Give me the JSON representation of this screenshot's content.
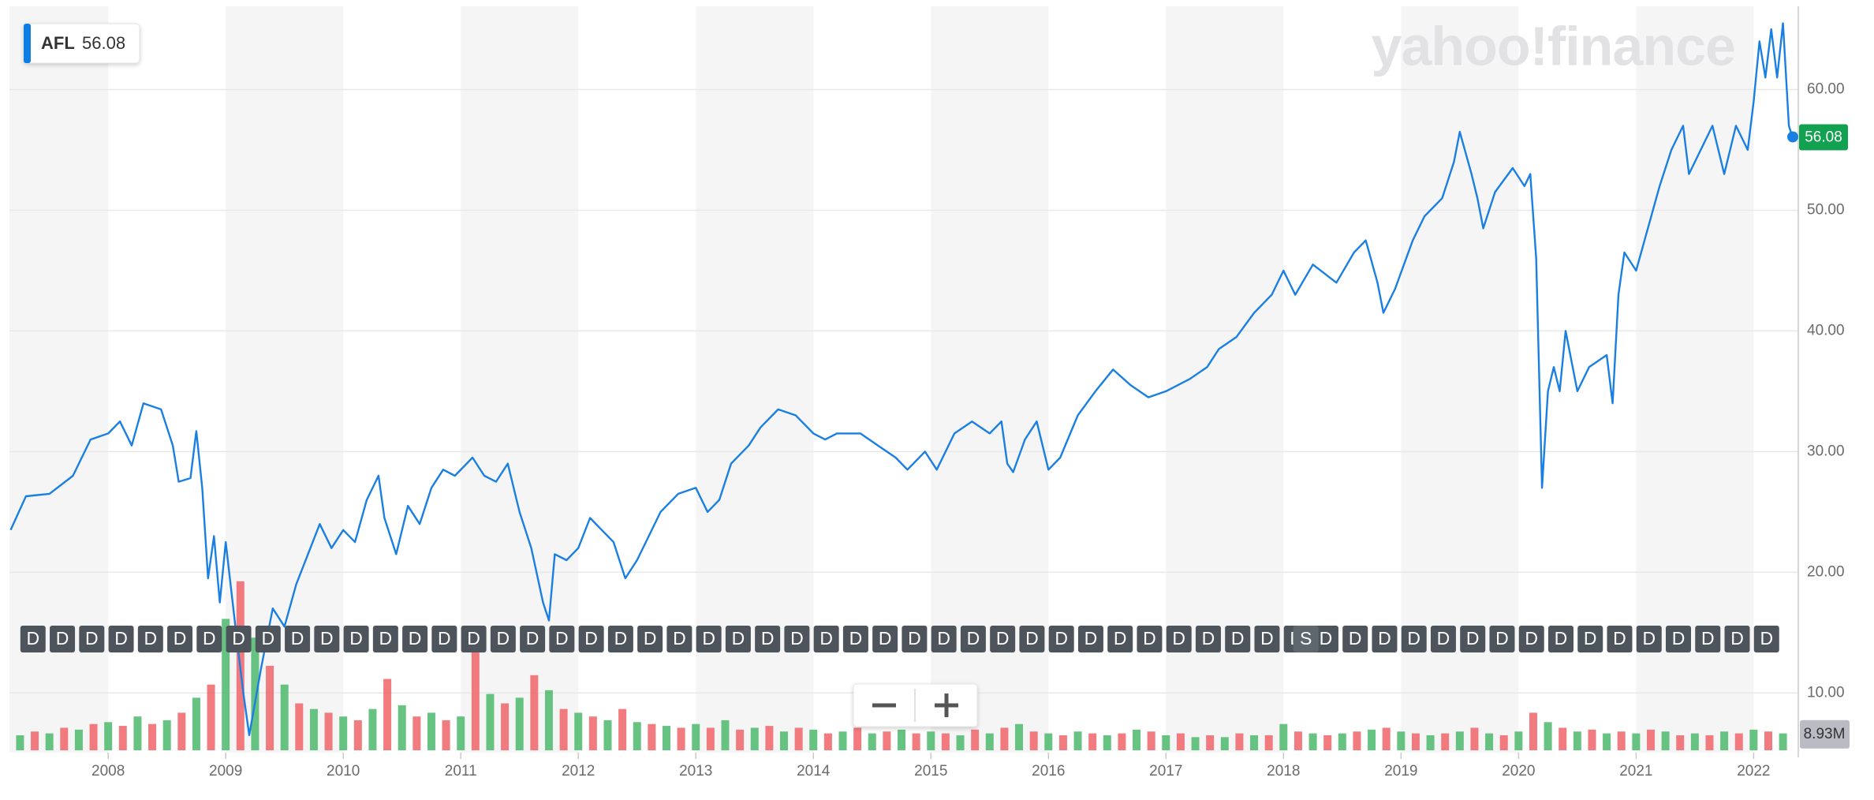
{
  "chart_data": {
    "type": "line",
    "symbol": "AFL",
    "watermark": "yahoo!finance",
    "last_price": 56.08,
    "x": [
      2007.17,
      2007.3,
      2007.5,
      2007.7,
      2007.85,
      2008.0,
      2008.1,
      2008.2,
      2008.3,
      2008.45,
      2008.55,
      2008.6,
      2008.7,
      2008.75,
      2008.8,
      2008.85,
      2008.9,
      2008.95,
      2009.0,
      2009.1,
      2009.15,
      2009.2,
      2009.3,
      2009.4,
      2009.5,
      2009.6,
      2009.7,
      2009.8,
      2009.9,
      2010.0,
      2010.1,
      2010.2,
      2010.3,
      2010.35,
      2010.45,
      2010.55,
      2010.65,
      2010.75,
      2010.85,
      2010.95,
      2011.1,
      2011.2,
      2011.3,
      2011.4,
      2011.5,
      2011.6,
      2011.7,
      2011.75,
      2011.8,
      2011.9,
      2012.0,
      2012.1,
      2012.2,
      2012.3,
      2012.4,
      2012.5,
      2012.6,
      2012.7,
      2012.85,
      2013.0,
      2013.1,
      2013.2,
      2013.3,
      2013.45,
      2013.55,
      2013.7,
      2013.85,
      2014.0,
      2014.1,
      2014.2,
      2014.4,
      2014.55,
      2014.7,
      2014.8,
      2014.95,
      2015.05,
      2015.2,
      2015.35,
      2015.5,
      2015.6,
      2015.65,
      2015.7,
      2015.8,
      2015.9,
      2016.0,
      2016.1,
      2016.25,
      2016.4,
      2016.55,
      2016.7,
      2016.85,
      2017.0,
      2017.2,
      2017.35,
      2017.45,
      2017.6,
      2017.75,
      2017.9,
      2018.0,
      2018.1,
      2018.25,
      2018.45,
      2018.6,
      2018.7,
      2018.8,
      2018.85,
      2018.95,
      2019.1,
      2019.2,
      2019.35,
      2019.45,
      2019.5,
      2019.6,
      2019.65,
      2019.7,
      2019.8,
      2019.95,
      2020.05,
      2020.1,
      2020.15,
      2020.2,
      2020.25,
      2020.3,
      2020.35,
      2020.4,
      2020.5,
      2020.6,
      2020.75,
      2020.8,
      2020.85,
      2020.9,
      2021.0,
      2021.1,
      2021.2,
      2021.3,
      2021.4,
      2021.45,
      2021.55,
      2021.65,
      2021.75,
      2021.85,
      2021.95,
      2022.0,
      2022.05,
      2022.1,
      2022.15,
      2022.2,
      2022.25,
      2022.3,
      2022.33
    ],
    "series": [
      {
        "color": "#1a7fe3",
        "values": [
          23.5,
          26.3,
          26.5,
          28,
          31,
          31.5,
          32.5,
          30.5,
          34,
          33.5,
          30.5,
          27.5,
          27.8,
          31.7,
          27,
          19.5,
          23,
          17.5,
          22.5,
          14,
          10,
          6.5,
          12,
          17,
          15.5,
          19,
          21.5,
          24,
          22,
          23.5,
          22.5,
          26,
          28,
          24.5,
          21.5,
          25.5,
          24,
          27,
          28.5,
          28,
          29.5,
          28,
          27.5,
          29,
          25,
          22,
          17.5,
          16,
          21.5,
          21,
          22,
          24.5,
          23.5,
          22.5,
          19.5,
          21,
          23,
          25,
          26.5,
          27,
          25,
          26,
          29,
          30.5,
          32,
          33.5,
          33,
          31.5,
          31,
          31.5,
          31.5,
          30.5,
          29.5,
          28.5,
          30,
          28.5,
          31.5,
          32.5,
          31.5,
          32.5,
          29,
          28.3,
          31,
          32.5,
          28.5,
          29.5,
          33,
          35,
          36.8,
          35.5,
          34.5,
          35,
          36,
          37,
          38.5,
          39.5,
          41.5,
          43,
          45,
          43,
          45.5,
          44,
          46.5,
          47.5,
          44,
          41.5,
          43.5,
          47.5,
          49.5,
          51,
          54,
          56.5,
          53,
          51,
          48.5,
          51.5,
          53.5,
          52,
          53,
          46,
          27,
          35,
          37,
          35,
          40,
          35,
          37,
          38,
          34,
          43,
          46.5,
          45,
          48.5,
          52,
          55,
          57,
          53,
          55,
          57,
          53,
          57,
          55,
          59,
          64,
          61,
          65,
          61,
          65.5,
          57,
          56.08
        ]
      }
    ],
    "xlim": [
      2007.16,
      2022.38
    ],
    "xticks": [
      2008,
      2009,
      2010,
      2011,
      2012,
      2013,
      2014,
      2015,
      2016,
      2017,
      2018,
      2019,
      2020,
      2021,
      2022
    ],
    "ylim": [
      5.05,
      66.9
    ],
    "yticks": [
      {
        "value": 10,
        "label": "10.00"
      },
      {
        "value": 20,
        "label": "20.00"
      },
      {
        "value": 30,
        "label": "30.00"
      },
      {
        "value": 40,
        "label": "40.00"
      },
      {
        "value": 50,
        "label": "50.00"
      },
      {
        "value": 60,
        "label": "60.00"
      }
    ],
    "grid": true,
    "volume": {
      "vlim": [
        0,
        100
      ],
      "last": {
        "value": 8.93,
        "label": "8.93M"
      },
      "series": [
        {
          "color": "#4cb86b",
          "x": [
            2007.25,
            2007.5,
            2007.75,
            2008.0,
            2008.25,
            2008.5,
            2008.75,
            2009.0,
            2009.25,
            2009.5,
            2009.75,
            2010.0,
            2010.25,
            2010.5,
            2010.75,
            2011.0,
            2011.25,
            2011.5,
            2011.75,
            2012.0,
            2012.25,
            2012.5,
            2012.75,
            2013.0,
            2013.25,
            2013.5,
            2013.75,
            2014.0,
            2014.25,
            2014.5,
            2014.75,
            2015.0,
            2015.25,
            2015.5,
            2015.75,
            2016.0,
            2016.25,
            2016.5,
            2016.75,
            2017.0,
            2017.25,
            2017.5,
            2017.75,
            2018.0,
            2018.25,
            2018.5,
            2018.75,
            2019.0,
            2019.25,
            2019.5,
            2019.75,
            2020.0,
            2020.25,
            2020.5,
            2020.75,
            2021.0,
            2021.25,
            2021.5,
            2021.75,
            2022.0,
            2022.25
          ],
          "values": [
            8,
            9,
            11,
            15,
            18,
            16,
            28,
            70,
            60,
            35,
            22,
            18,
            22,
            24,
            20,
            18,
            30,
            28,
            32,
            20,
            16,
            15,
            13,
            14,
            16,
            12,
            10,
            11,
            10,
            9,
            11,
            10,
            8,
            9,
            14,
            9,
            10,
            8,
            11,
            8,
            7,
            7,
            8,
            14,
            9,
            9,
            11,
            10,
            8,
            10,
            9,
            10,
            15,
            10,
            9,
            9,
            10,
            9,
            10,
            11,
            9
          ]
        },
        {
          "color": "#f0646a",
          "x": [
            2007.375,
            2007.625,
            2007.875,
            2008.125,
            2008.375,
            2008.625,
            2008.875,
            2009.125,
            2009.375,
            2009.625,
            2009.875,
            2010.125,
            2010.375,
            2010.625,
            2010.875,
            2011.125,
            2011.375,
            2011.625,
            2011.875,
            2012.125,
            2012.375,
            2012.625,
            2012.875,
            2013.125,
            2013.375,
            2013.625,
            2013.875,
            2014.125,
            2014.375,
            2014.625,
            2014.875,
            2015.125,
            2015.375,
            2015.625,
            2015.875,
            2016.125,
            2016.375,
            2016.625,
            2016.875,
            2017.125,
            2017.375,
            2017.625,
            2017.875,
            2018.125,
            2018.375,
            2018.625,
            2018.875,
            2019.125,
            2019.375,
            2019.625,
            2019.875,
            2020.125,
            2020.375,
            2020.625,
            2020.875,
            2021.125,
            2021.375,
            2021.625,
            2021.875,
            2022.125
          ],
          "values": [
            10,
            12,
            14,
            13,
            14,
            20,
            35,
            90,
            45,
            25,
            20,
            16,
            38,
            18,
            16,
            62,
            25,
            40,
            22,
            18,
            22,
            14,
            12,
            12,
            11,
            13,
            12,
            9,
            12,
            10,
            9,
            9,
            11,
            12,
            10,
            8,
            9,
            9,
            10,
            9,
            8,
            9,
            8,
            10,
            8,
            10,
            12,
            9,
            9,
            12,
            8,
            20,
            12,
            11,
            10,
            11,
            8,
            8,
            9,
            10
          ]
        }
      ]
    },
    "events": {
      "dividend_label": "D",
      "dividend_x": [
        2007.36,
        2007.61,
        2007.86,
        2008.11,
        2008.36,
        2008.61,
        2008.86,
        2009.11,
        2009.36,
        2009.61,
        2009.86,
        2010.11,
        2010.36,
        2010.61,
        2010.86,
        2011.11,
        2011.36,
        2011.61,
        2011.86,
        2012.11,
        2012.36,
        2012.61,
        2012.86,
        2013.11,
        2013.36,
        2013.61,
        2013.86,
        2014.11,
        2014.36,
        2014.61,
        2014.86,
        2015.11,
        2015.36,
        2015.61,
        2015.86,
        2016.11,
        2016.36,
        2016.61,
        2016.86,
        2017.11,
        2017.36,
        2017.61,
        2017.86,
        2018.11,
        2018.36,
        2018.61,
        2018.86,
        2019.11,
        2019.36,
        2019.61,
        2019.86,
        2020.11,
        2020.36,
        2020.61,
        2020.86,
        2021.11,
        2021.36,
        2021.61,
        2021.86,
        2022.11
      ],
      "split_label": "S",
      "split_x": 2018.19
    }
  }
}
